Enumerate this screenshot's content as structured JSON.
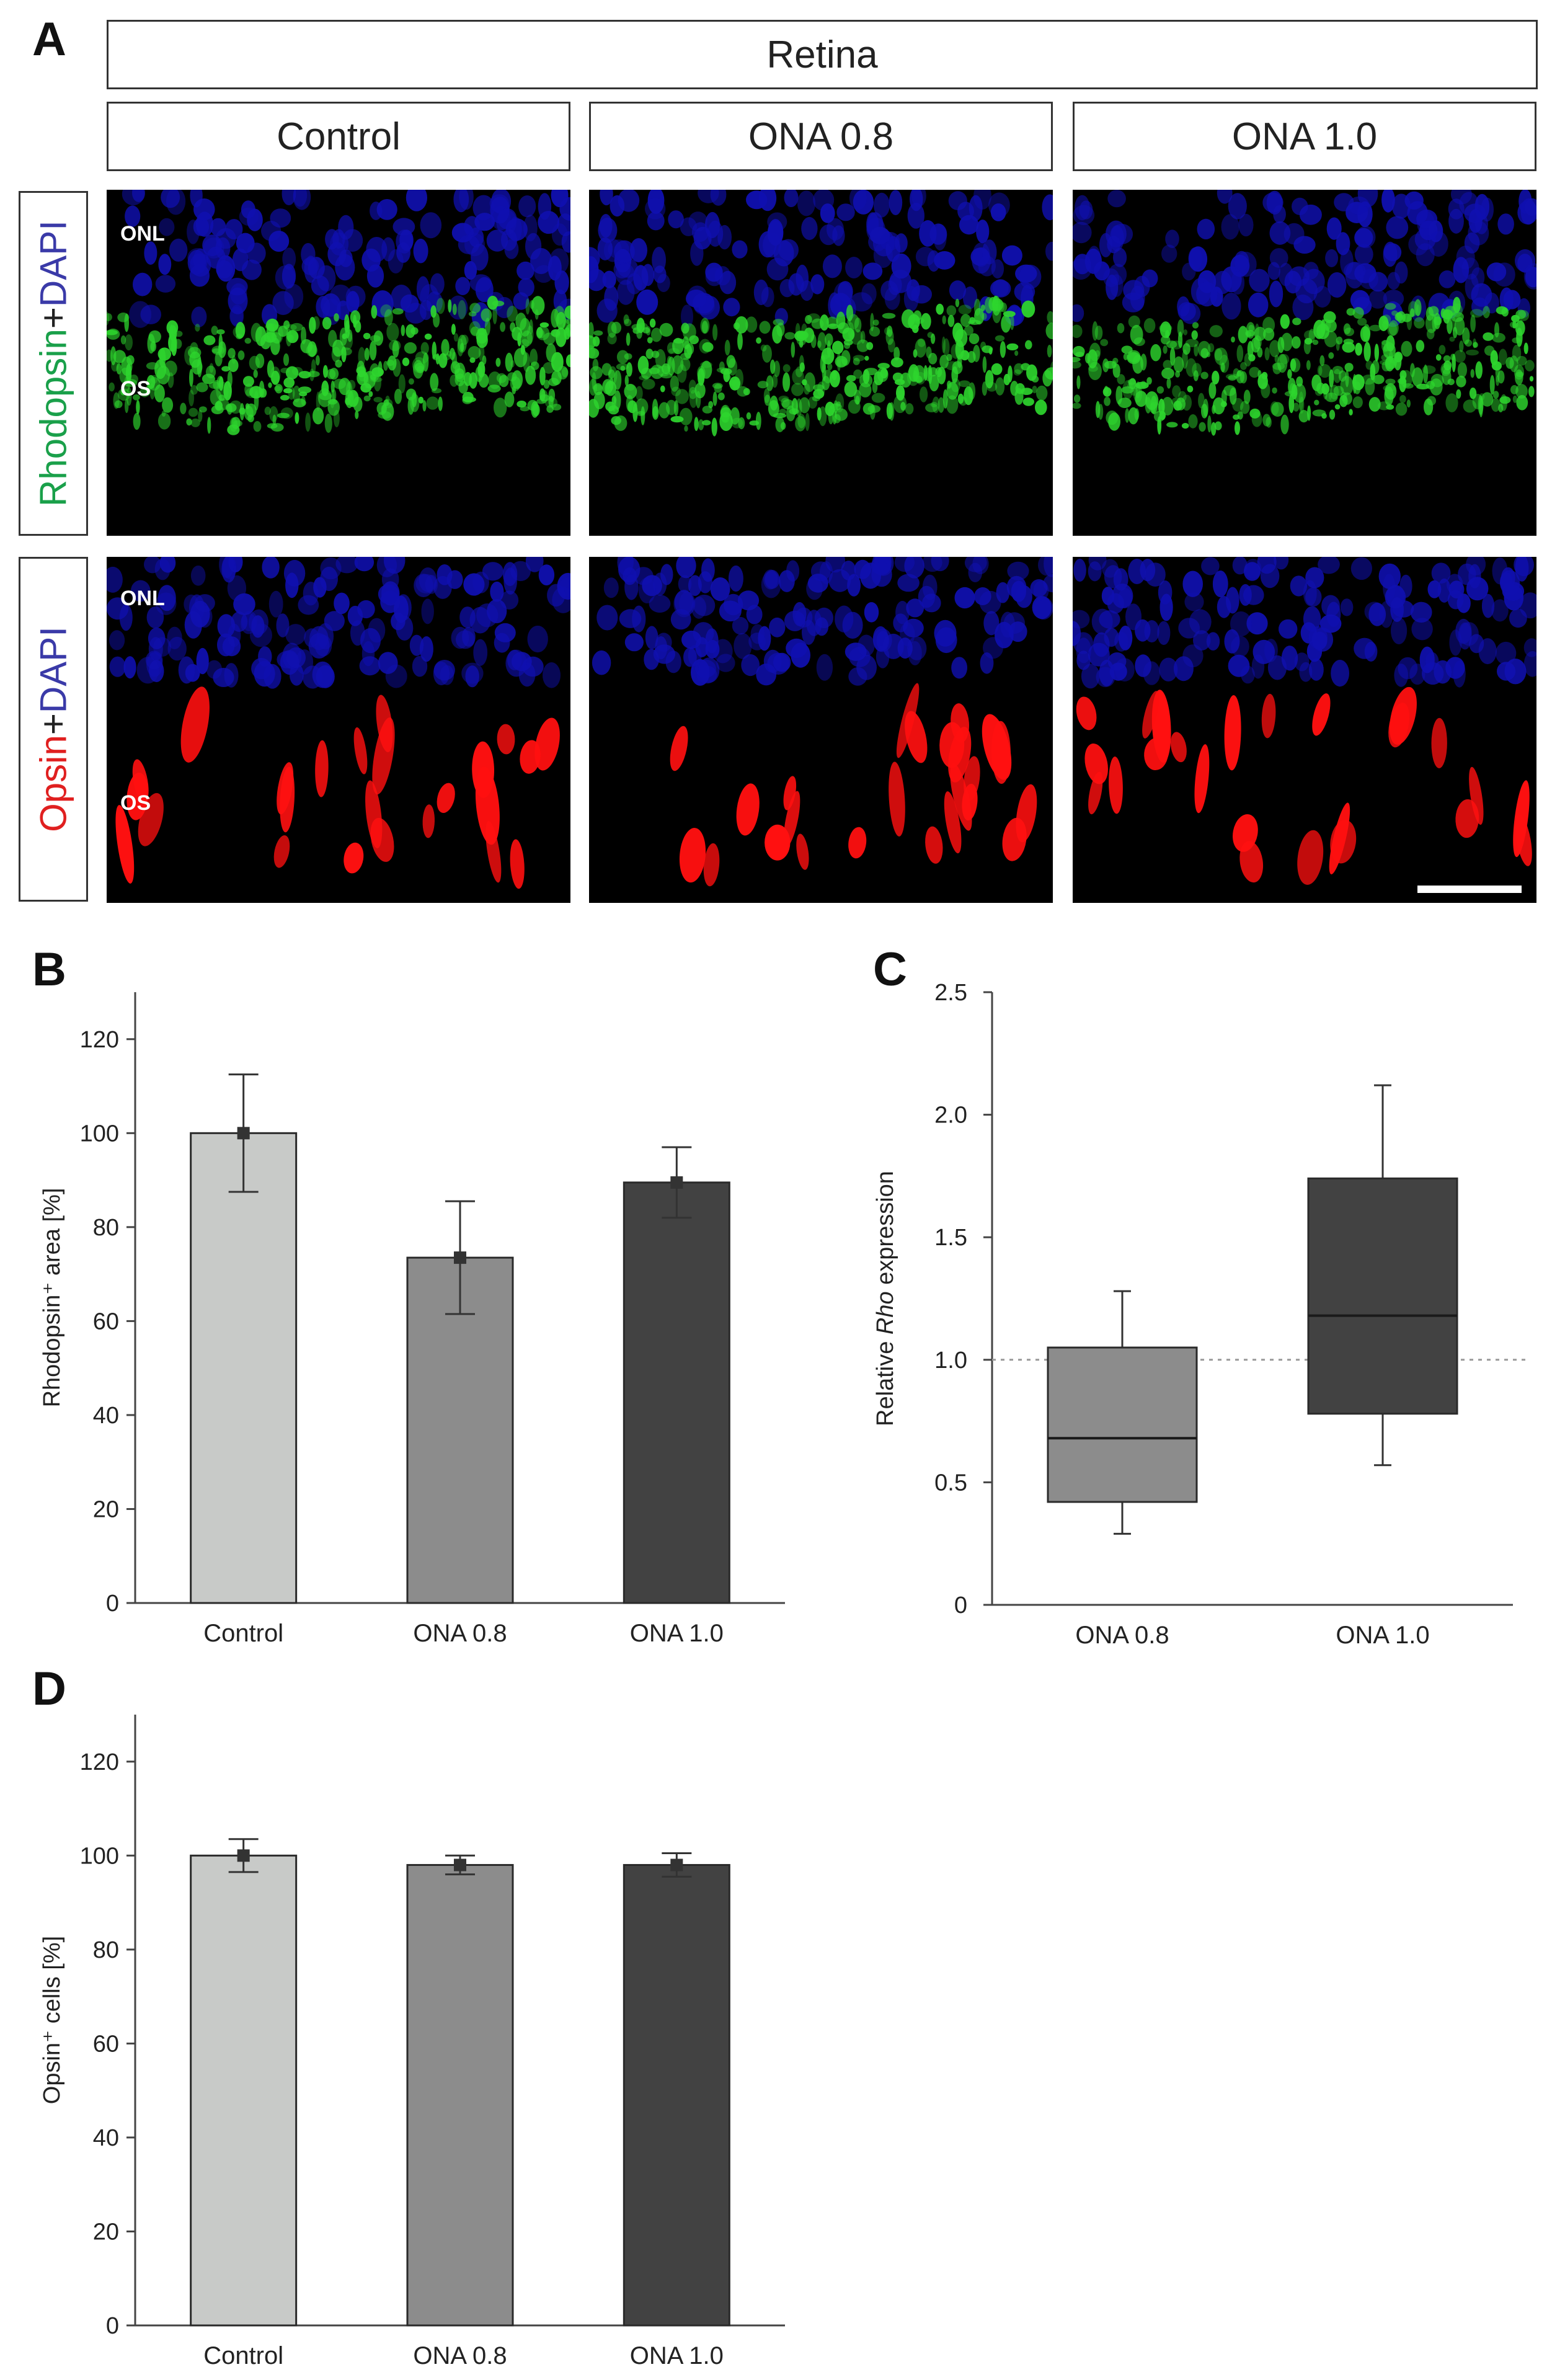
{
  "panel_a": {
    "letter": "A",
    "tissue_header": "Retina",
    "groups": [
      "Control",
      "ONA 0.8",
      "ONA 1.0"
    ],
    "rows": [
      {
        "label_parts": [
          {
            "text": "Rhodopsin",
            "color": "#1aa04a"
          },
          {
            "text": "+",
            "color": "#222222"
          },
          {
            "text": "DAPI",
            "color": "#3a3aa8"
          }
        ],
        "layer_labels": [
          "ONL",
          "OS"
        ],
        "stain_color": "#2ed62e",
        "nuclei_color": "#1010b0"
      },
      {
        "label_parts": [
          {
            "text": "Opsin",
            "color": "#e02020"
          },
          {
            "text": "+",
            "color": "#222222"
          },
          {
            "text": "DAPI",
            "color": "#3a3aa8"
          }
        ],
        "layer_labels": [
          "ONL",
          "OS"
        ],
        "stain_color": "#ff1010",
        "nuclei_color": "#1010b0"
      }
    ]
  },
  "chart_data": [
    {
      "panel": "B",
      "type": "bar",
      "categories": [
        "Control",
        "ONA 0.8",
        "ONA 1.0"
      ],
      "values": [
        100,
        73.5,
        89.5
      ],
      "error": [
        12.5,
        12,
        7.5
      ],
      "colors": [
        "#c8cac8",
        "#8c8c8c",
        "#424242"
      ],
      "ylabel": "Rhodopsin⁺ area [%]",
      "ylim": [
        0,
        130
      ],
      "yticks": [
        0,
        20,
        40,
        60,
        80,
        100,
        120
      ]
    },
    {
      "panel": "C",
      "type": "box",
      "categories": [
        "ONA 0.8",
        "ONA 1.0"
      ],
      "boxes": [
        {
          "min": 0.29,
          "q1": 0.42,
          "median": 0.68,
          "q3": 1.05,
          "max": 1.28
        },
        {
          "min": 0.57,
          "q1": 0.78,
          "median": 1.18,
          "q3": 1.74,
          "max": 2.12
        }
      ],
      "colors": [
        "#8c8c8c",
        "#424242"
      ],
      "reference_line": 1.0,
      "ylabel_parts": [
        "Relative ",
        "Rho",
        " expression"
      ],
      "ylim": [
        0,
        2.5
      ],
      "yticks": [
        "0",
        "0.5",
        "1.0",
        "1.5",
        "2.0",
        "2.5"
      ]
    },
    {
      "panel": "D",
      "type": "bar",
      "categories": [
        "Control",
        "ONA 0.8",
        "ONA 1.0"
      ],
      "values": [
        100,
        98,
        98
      ],
      "error": [
        3.5,
        2,
        2.5
      ],
      "colors": [
        "#c8cac8",
        "#8c8c8c",
        "#424242"
      ],
      "ylabel": "Opsin⁺ cells [%]",
      "ylim": [
        0,
        130
      ],
      "yticks": [
        0,
        20,
        40,
        60,
        80,
        100,
        120
      ]
    }
  ]
}
